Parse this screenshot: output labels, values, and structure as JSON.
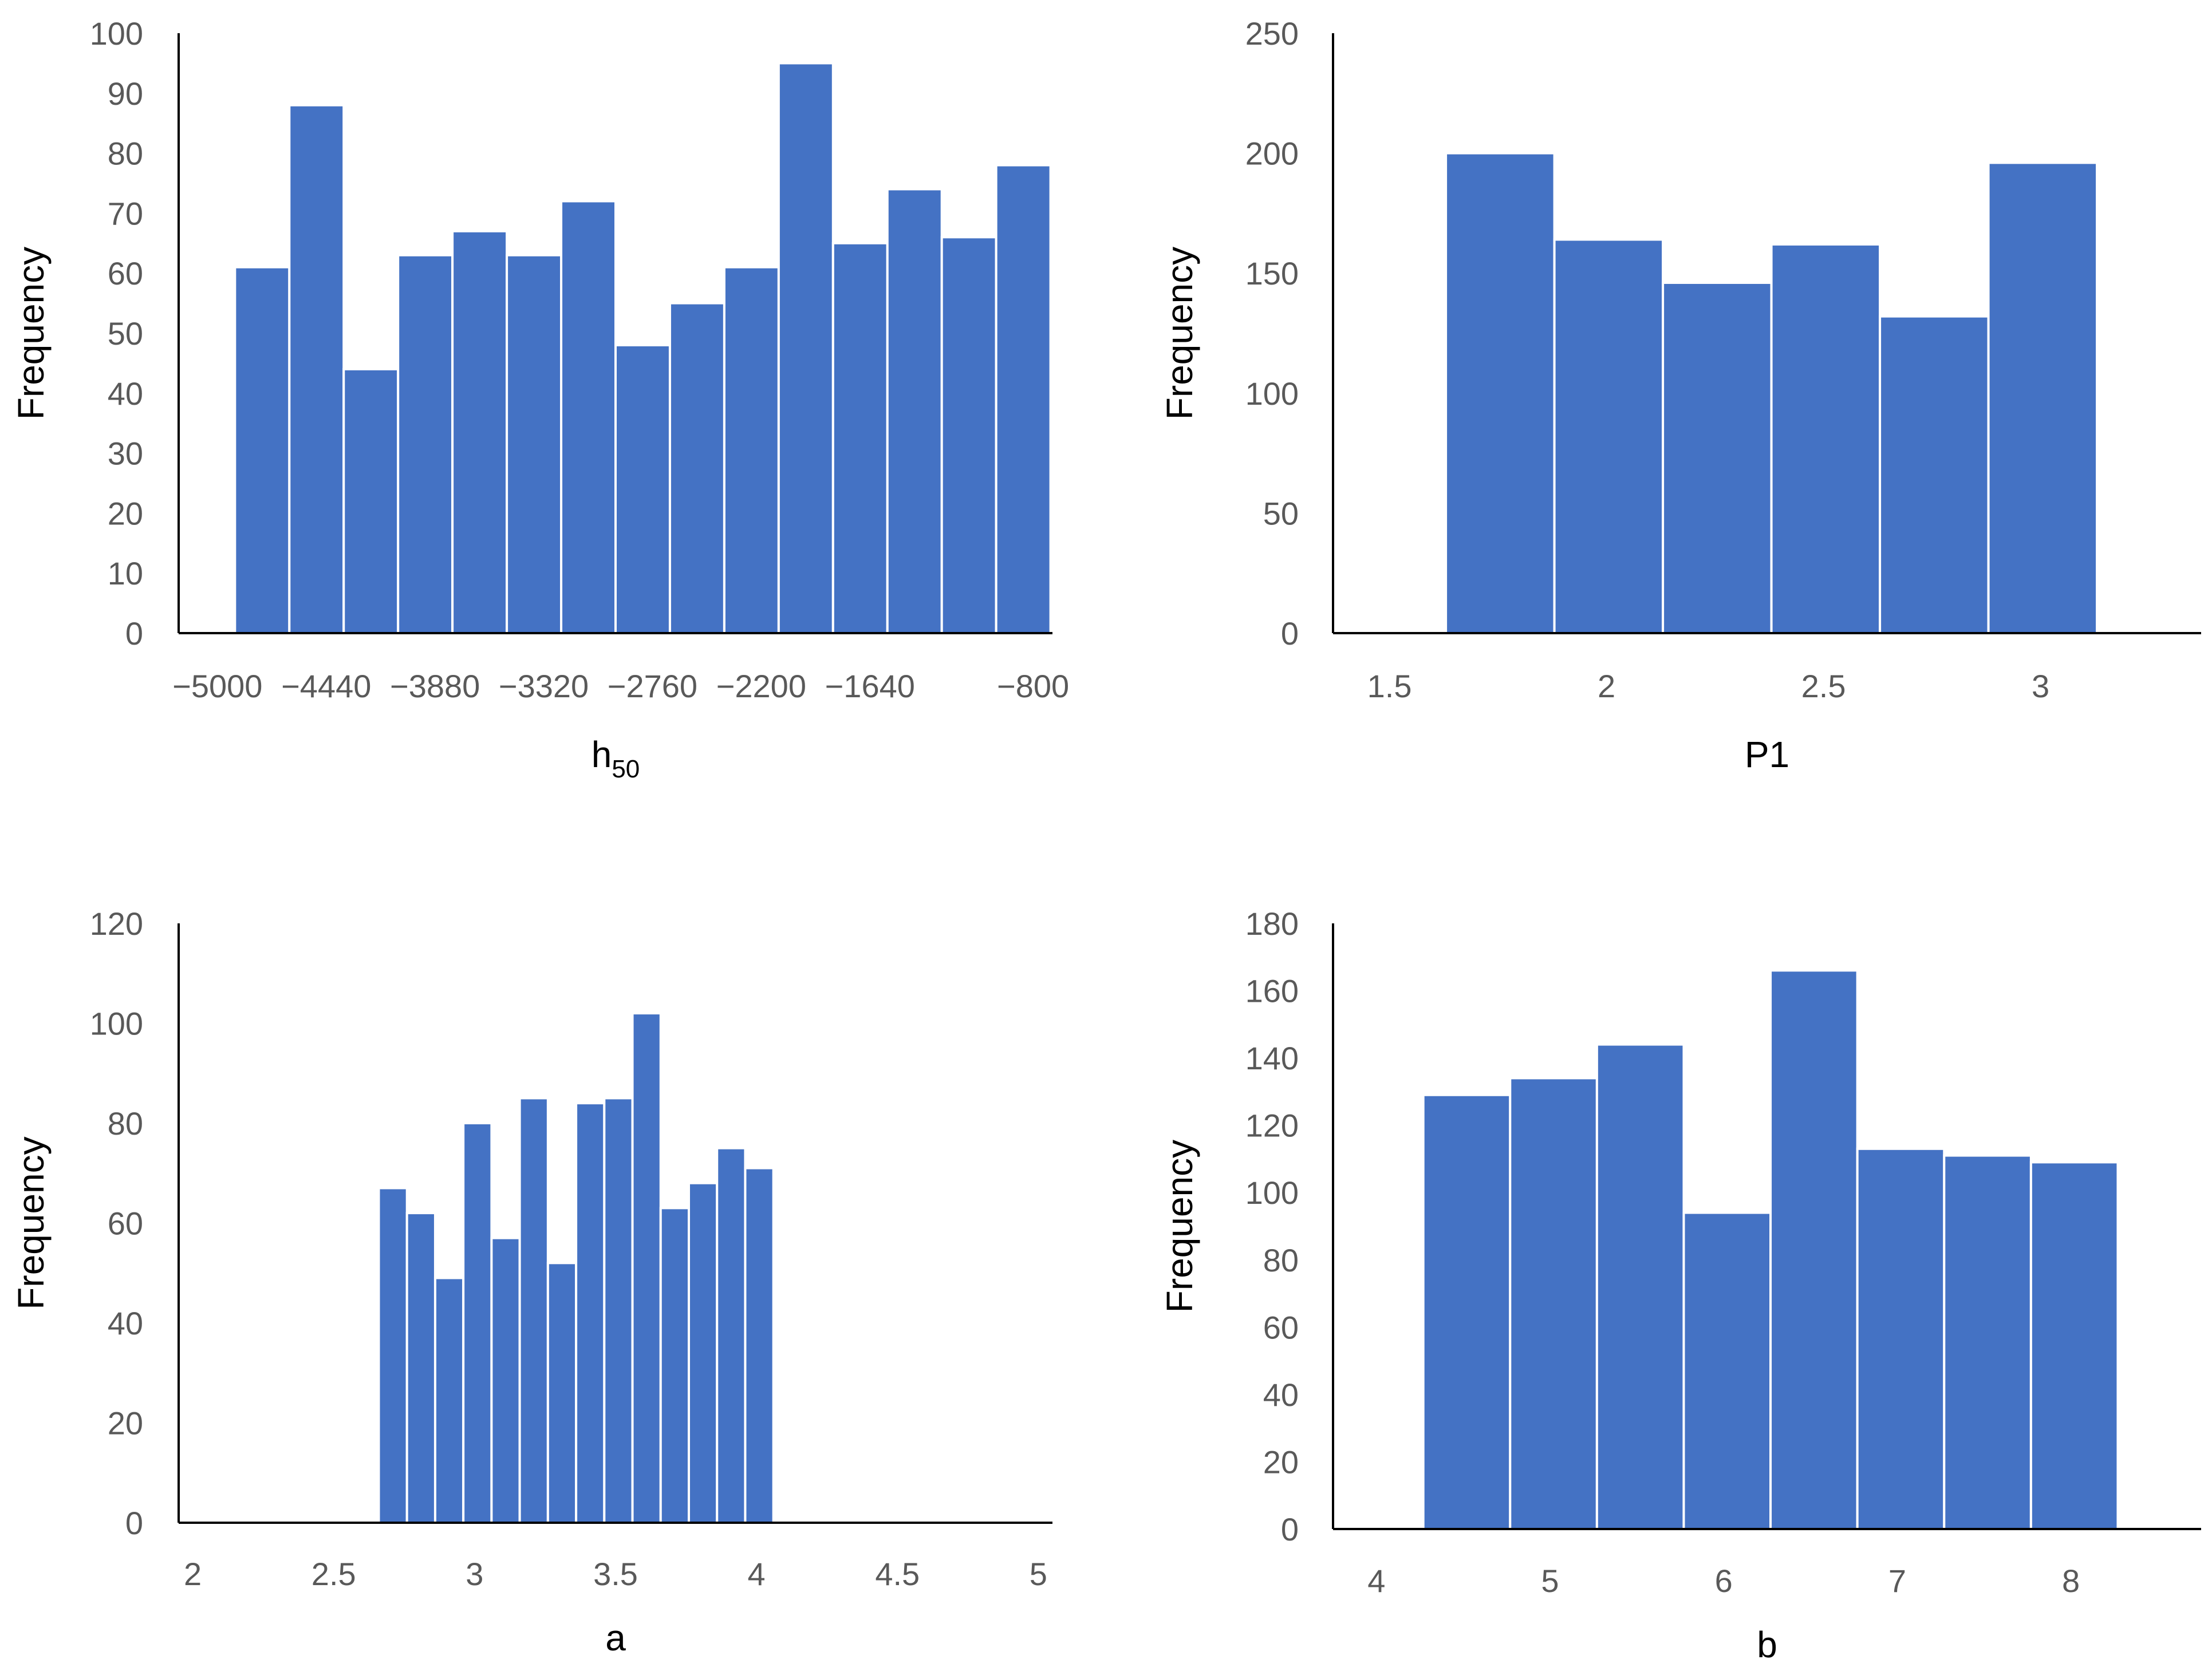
{
  "chart_data": [
    {
      "type": "bar",
      "title": "",
      "xlabel": "h",
      "xlabel_sub": "50",
      "ylabel": "Frequency",
      "ylim": [
        0,
        100
      ],
      "yticks": [
        0,
        10,
        20,
        30,
        40,
        50,
        60,
        70,
        80,
        90,
        100
      ],
      "xlim": [
        -5200,
        -700
      ],
      "xticks": [
        -5000,
        -4440,
        -3880,
        -3320,
        -2760,
        -2200,
        -1640,
        -800
      ],
      "xtick_labels": [
        "−5000",
        "−4440",
        "−3880",
        "−3320",
        "−2760",
        "−2200",
        "−1640",
        "−800"
      ],
      "bar_start": -4910,
      "bin_width": 280,
      "values": [
        61,
        88,
        44,
        63,
        67,
        63,
        72,
        48,
        55,
        61,
        95,
        65,
        74,
        66,
        78
      ],
      "color": "#4472c4"
    },
    {
      "type": "bar",
      "title": "",
      "xlabel": "P1",
      "ylabel": "Frequency",
      "ylim": [
        0,
        250
      ],
      "yticks": [
        0,
        50,
        100,
        150,
        200,
        250
      ],
      "xlim": [
        1.37,
        3.37
      ],
      "xticks": [
        1.5,
        2,
        2.5,
        3
      ],
      "xtick_labels": [
        "1.5",
        "2",
        "2.5",
        "3"
      ],
      "bar_start": 1.63,
      "bin_width": 0.25,
      "values": [
        200,
        164,
        146,
        162,
        132,
        196
      ],
      "color": "#4472c4"
    },
    {
      "type": "bar",
      "title": "",
      "xlabel": "a",
      "ylabel": "Frequency",
      "ylim": [
        0,
        120
      ],
      "yticks": [
        0,
        20,
        40,
        60,
        80,
        100,
        120
      ],
      "xlim": [
        1.95,
        5.05
      ],
      "xticks": [
        2,
        2.5,
        3,
        3.5,
        4,
        4.5,
        5
      ],
      "xtick_labels": [
        "2",
        "2.5",
        "3",
        "3.5",
        "4",
        "4.5",
        "5"
      ],
      "bar_start": 2.66,
      "bin_width": 0.1,
      "values": [
        67,
        62,
        49,
        80,
        57,
        85,
        52,
        84,
        85,
        102,
        63,
        68,
        75,
        71
      ],
      "color": "#4472c4"
    },
    {
      "type": "bar",
      "title": "",
      "xlabel": "b",
      "ylabel": "Frequency",
      "ylim": [
        0,
        180
      ],
      "yticks": [
        0,
        20,
        40,
        60,
        80,
        100,
        120,
        140,
        160,
        180
      ],
      "xlim": [
        3.75,
        8.75
      ],
      "xticks": [
        4,
        5,
        6,
        7,
        8
      ],
      "xtick_labels": [
        "4",
        "5",
        "6",
        "7",
        "8"
      ],
      "bar_start": 4.27,
      "bin_width": 0.5,
      "values": [
        129,
        134,
        144,
        94,
        166,
        113,
        111,
        109
      ],
      "color": "#4472c4"
    }
  ]
}
